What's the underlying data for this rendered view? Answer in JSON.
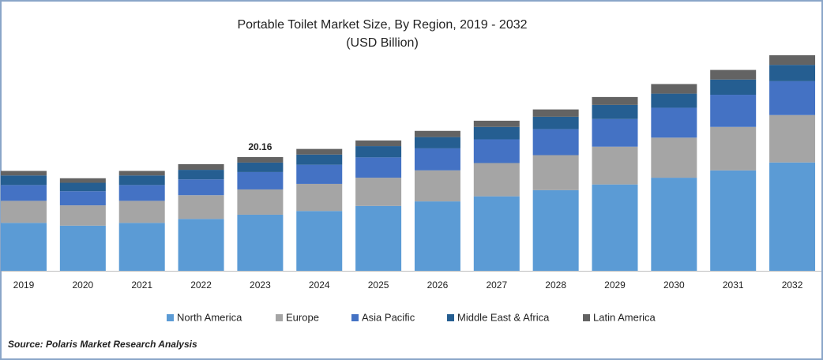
{
  "chart_data": {
    "type": "stacked_bar",
    "title": "Portable Toilet  Market Size, By Region, 2019 - 2032",
    "subtitle": "(USD Billion)",
    "categories": [
      "2019",
      "2020",
      "2021",
      "2022",
      "2023",
      "2024",
      "2025",
      "2026",
      "2027",
      "2028",
      "2029",
      "2030",
      "2031",
      "2032"
    ],
    "series": [
      {
        "name": "North America",
        "color": "#5b9bd5",
        "values": [
          8.5,
          8.0,
          8.5,
          9.2,
          9.94,
          10.6,
          11.5,
          12.3,
          13.2,
          14.3,
          15.3,
          16.5,
          17.8,
          19.2
        ]
      },
      {
        "name": "Europe",
        "color": "#a5a5a5",
        "values": [
          3.9,
          3.6,
          3.9,
          4.2,
          4.48,
          4.8,
          5.0,
          5.5,
          5.9,
          6.2,
          6.7,
          7.1,
          7.7,
          8.4
        ]
      },
      {
        "name": "Asia Pacific",
        "color": "#4472c4",
        "values": [
          2.8,
          2.5,
          2.8,
          2.8,
          3.08,
          3.4,
          3.6,
          3.9,
          4.2,
          4.6,
          4.9,
          5.3,
          5.7,
          6.0
        ]
      },
      {
        "name": "Middle East & Africa",
        "color": "#255e91",
        "values": [
          1.7,
          1.5,
          1.7,
          1.7,
          1.68,
          1.8,
          2.0,
          2.0,
          2.2,
          2.2,
          2.5,
          2.5,
          2.7,
          2.9
        ]
      },
      {
        "name": "Latin America",
        "color": "#636363",
        "values": [
          0.8,
          0.8,
          0.8,
          1.0,
          0.98,
          1.0,
          1.0,
          1.1,
          1.1,
          1.3,
          1.4,
          1.7,
          1.7,
          1.7
        ]
      }
    ],
    "annotations": [
      {
        "x": "2023",
        "value": 20.16
      }
    ],
    "source": "Source: Polaris  Market Research Analysis"
  }
}
